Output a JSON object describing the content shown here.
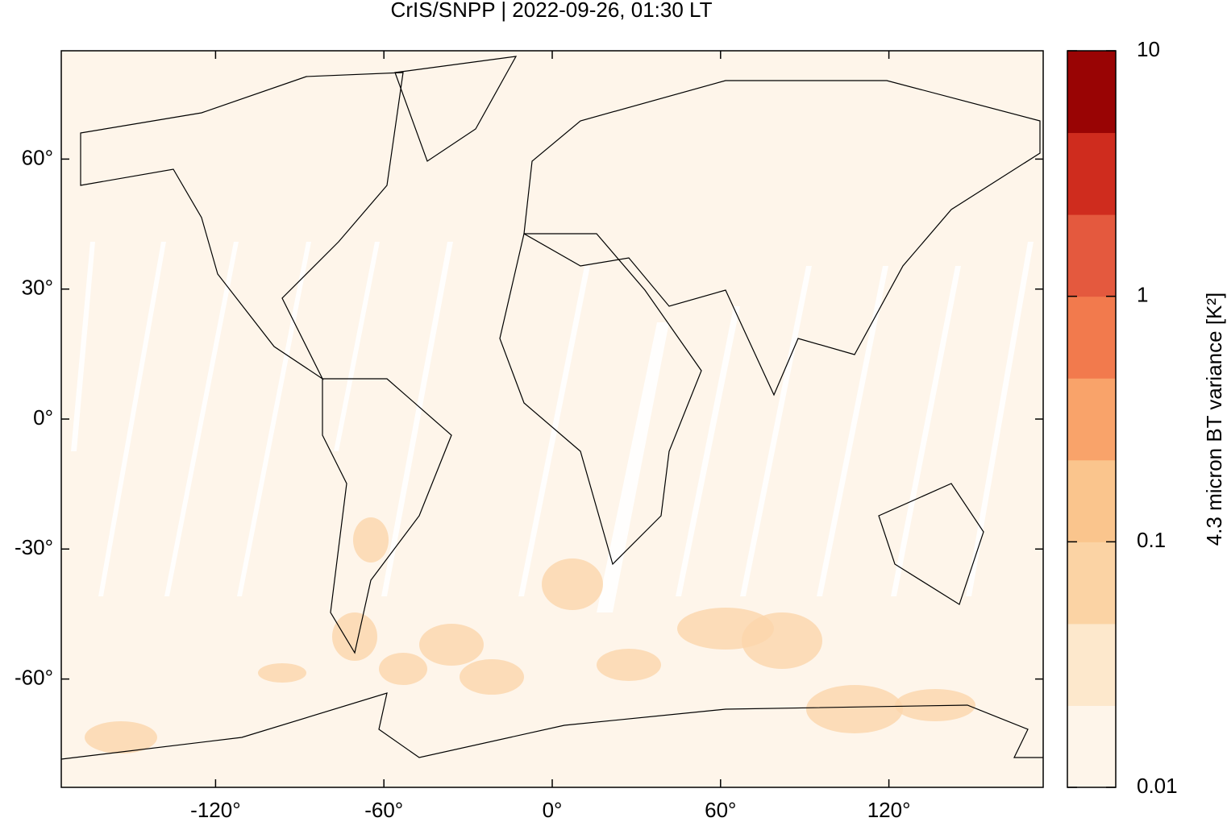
{
  "chart_data": {
    "type": "map",
    "title": "CrIS/SNPP | 2022-09-26, 01:30 LT",
    "xlim": [
      -175,
      175
    ],
    "ylim": [
      -85,
      85
    ],
    "xticks": [
      {
        "value": -120,
        "label": "-120°"
      },
      {
        "value": -60,
        "label": "-60°"
      },
      {
        "value": 0,
        "label": "0°"
      },
      {
        "value": 60,
        "label": "60°"
      },
      {
        "value": 120,
        "label": "120°"
      }
    ],
    "yticks": [
      {
        "value": 60,
        "label": "60°"
      },
      {
        "value": 30,
        "label": "30°"
      },
      {
        "value": 0,
        "label": "0°"
      },
      {
        "value": -30,
        "label": "-30°"
      },
      {
        "value": -60,
        "label": "-60°"
      }
    ],
    "colorbar": {
      "label": "4.3 micron BT variance [K²]",
      "log_scale": true,
      "lim": [
        0.01,
        10
      ],
      "ticks": [
        0.01,
        0.1,
        1,
        10
      ],
      "colors": [
        "#fef5ea",
        "#fde8cc",
        "#fbd3a4",
        "#fac58d",
        "#f9a36a",
        "#f27a4d",
        "#e4593e",
        "#cf2c1e",
        "#990404"
      ]
    }
  }
}
